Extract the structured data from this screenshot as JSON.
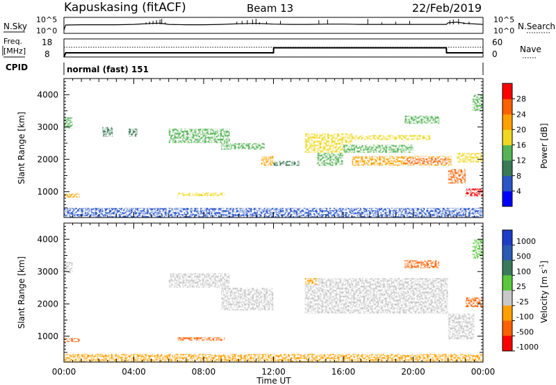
{
  "header": {
    "station": "Kapuskasing (fitACF)",
    "beam": "Beam 13",
    "date": "22/Feb/2019"
  },
  "noise_panel": {
    "left_label": "N.Sky",
    "right_label": "N.Search",
    "left_ticks": [
      "10^5",
      "10^0"
    ],
    "right_ticks": [
      "10^5",
      "10^0"
    ]
  },
  "freq_panel": {
    "left_label_line1": "Freq.",
    "left_label_line2": "[MHz]",
    "right_label": "Nave",
    "left_ticks": [
      "18",
      "8"
    ],
    "right_ticks": [
      "60",
      "0"
    ]
  },
  "cpid": {
    "label": "CPID",
    "value": "normal (fast) 151"
  },
  "axes": {
    "ylabel": "Slant Range [km]",
    "xlabel": "Time UT",
    "yticks": [
      "4000",
      "3000",
      "2000",
      "1000"
    ],
    "xticks": [
      "00:00",
      "04:00",
      "08:00",
      "12:00",
      "16:00",
      "20:00",
      "00:00"
    ]
  },
  "power_colorbar": {
    "label": "Power [dB]",
    "ticks": [
      "28",
      "24",
      "20",
      "16",
      "12",
      "8",
      "4"
    ],
    "colors": [
      "#0000ff",
      "#2a56c6",
      "#3a7a55",
      "#56b456",
      "#f0d820",
      "#ffa000",
      "#ff6000",
      "#ff0000"
    ]
  },
  "velocity_colorbar": {
    "label": "Velocity [m s",
    "label_sup": "-1",
    "label_end": "]",
    "ticks": [
      "1000",
      "500",
      "100",
      "25",
      "-25",
      "-100",
      "-500",
      "-1000"
    ],
    "colors": [
      "#1e3cc8",
      "#2a5ab4",
      "#3a7a5a",
      "#5ac83c",
      "#c8c8c8",
      "#ffa000",
      "#ff6000",
      "#ff0000"
    ]
  },
  "chart_data": [
    {
      "type": "line",
      "title": "N.Sky / N.Search",
      "x_range": [
        0,
        24
      ],
      "y_scale": "log",
      "y_range": [
        "10^0",
        "10^5"
      ],
      "series": [
        {
          "name": "N.Sky",
          "x": [
            0,
            0.1,
            1,
            2,
            3,
            4,
            5,
            5.5,
            6,
            7,
            8,
            9,
            10,
            11,
            12,
            13,
            14,
            15,
            16,
            17,
            18,
            19,
            20,
            21,
            21.9,
            22,
            22.5,
            23,
            24
          ],
          "y": [
            1,
            2.6,
            2.7,
            2.7,
            2.7,
            2.8,
            3.1,
            3.2,
            2.8,
            2.7,
            2.7,
            2.8,
            3.0,
            3.1,
            2.9,
            2.8,
            2.8,
            2.9,
            2.9,
            2.8,
            2.8,
            2.8,
            2.8,
            2.8,
            2.8,
            3.3,
            3.5,
            3.1,
            2.8
          ]
        }
      ]
    },
    {
      "type": "line",
      "title": "Freq. / Nave",
      "x_range": [
        0,
        24
      ],
      "series": [
        {
          "name": "Freq.",
          "x": [
            0,
            0.1,
            12,
            12.01,
            21.9,
            21.91,
            24
          ],
          "y": [
            8,
            10.5,
            10.5,
            13.5,
            13.5,
            10.5,
            10.5
          ]
        },
        {
          "name": "Nave",
          "x": [
            0,
            24
          ],
          "y": [
            30,
            30
          ]
        }
      ]
    },
    {
      "type": "heatmap",
      "title": "Power [dB]",
      "x_label": "Time UT",
      "y_label": "Slant Range [km]",
      "x_range": [
        0,
        24
      ],
      "y_range": [
        200,
        4500
      ],
      "regions": [
        {
          "t0": 0,
          "t1": 24,
          "r0": 200,
          "r1": 500,
          "power": 6
        },
        {
          "t0": 0,
          "t1": 0.9,
          "r0": 820,
          "r1": 940,
          "power": 20
        },
        {
          "t0": 6.5,
          "t1": 9.2,
          "r0": 860,
          "r1": 970,
          "power": 18
        },
        {
          "t0": 0,
          "t1": 0.5,
          "r0": 2950,
          "r1": 3300,
          "power": 12
        },
        {
          "t0": 2.2,
          "t1": 2.8,
          "r0": 2700,
          "r1": 3000,
          "power": 10
        },
        {
          "t0": 3.7,
          "t1": 4.2,
          "r0": 2700,
          "r1": 2950,
          "power": 10
        },
        {
          "t0": 6.0,
          "t1": 9.5,
          "r0": 2500,
          "r1": 2950,
          "power": 14
        },
        {
          "t0": 9.0,
          "t1": 11.5,
          "r0": 2300,
          "r1": 2500,
          "power": 12
        },
        {
          "t0": 11.3,
          "t1": 12.0,
          "r0": 1800,
          "r1": 2100,
          "power": 20
        },
        {
          "t0": 12.0,
          "t1": 13.5,
          "r0": 1800,
          "r1": 1950,
          "power": 10
        },
        {
          "t0": 13.8,
          "t1": 16.5,
          "r0": 2200,
          "r1": 2800,
          "power": 16
        },
        {
          "t0": 14.5,
          "t1": 16.0,
          "r0": 1800,
          "r1": 2200,
          "power": 12
        },
        {
          "t0": 16.0,
          "t1": 21.0,
          "r0": 2600,
          "r1": 2750,
          "power": 16
        },
        {
          "t0": 16.0,
          "t1": 20.0,
          "r0": 2200,
          "r1": 2450,
          "power": 13
        },
        {
          "t0": 16.5,
          "t1": 22.2,
          "r0": 1800,
          "r1": 2100,
          "power": 20
        },
        {
          "t0": 19.5,
          "t1": 22.0,
          "r0": 1850,
          "r1": 2050,
          "power": 24
        },
        {
          "t0": 19.5,
          "t1": 21.5,
          "r0": 3100,
          "r1": 3350,
          "power": 14
        },
        {
          "t0": 22.0,
          "t1": 23.0,
          "r0": 1250,
          "r1": 1700,
          "power": 26
        },
        {
          "t0": 23.0,
          "t1": 24.0,
          "r0": 850,
          "r1": 1100,
          "power": 30
        },
        {
          "t0": 22.5,
          "t1": 24.0,
          "r0": 1900,
          "r1": 2200,
          "power": 18
        },
        {
          "t0": 23.4,
          "t1": 24.0,
          "r0": 3500,
          "r1": 4000,
          "power": 14
        }
      ]
    },
    {
      "type": "heatmap",
      "title": "Velocity [m s^-1]",
      "x_label": "Time UT",
      "y_label": "Slant Range [km]",
      "x_range": [
        0,
        24
      ],
      "y_range": [
        200,
        4500
      ],
      "regions": [
        {
          "t0": 0,
          "t1": 24,
          "r0": 200,
          "r1": 450,
          "velocity": -60
        },
        {
          "t0": 0,
          "t1": 0.9,
          "r0": 820,
          "r1": 940,
          "velocity": -300
        },
        {
          "t0": 6.5,
          "t1": 9.2,
          "r0": 860,
          "r1": 970,
          "velocity": -300
        },
        {
          "t0": 0,
          "t1": 0.5,
          "r0": 2950,
          "r1": 3300,
          "velocity": 0
        },
        {
          "t0": 6.0,
          "t1": 9.5,
          "r0": 2500,
          "r1": 2950,
          "velocity": 0
        },
        {
          "t0": 9.0,
          "t1": 12.0,
          "r0": 1800,
          "r1": 2500,
          "velocity": 0
        },
        {
          "t0": 13.8,
          "t1": 22.0,
          "r0": 1700,
          "r1": 2800,
          "velocity": 0
        },
        {
          "t0": 13.8,
          "t1": 14.5,
          "r0": 2600,
          "r1": 2800,
          "velocity": -80
        },
        {
          "t0": 19.5,
          "t1": 21.5,
          "r0": 3100,
          "r1": 3350,
          "velocity": -150
        },
        {
          "t0": 22.0,
          "t1": 23.5,
          "r0": 900,
          "r1": 1700,
          "velocity": 0
        },
        {
          "t0": 23.0,
          "t1": 24.0,
          "r0": 1900,
          "r1": 2200,
          "velocity": -400
        },
        {
          "t0": 23.4,
          "t1": 24.0,
          "r0": 3400,
          "r1": 4000,
          "velocity": 40
        }
      ]
    }
  ]
}
